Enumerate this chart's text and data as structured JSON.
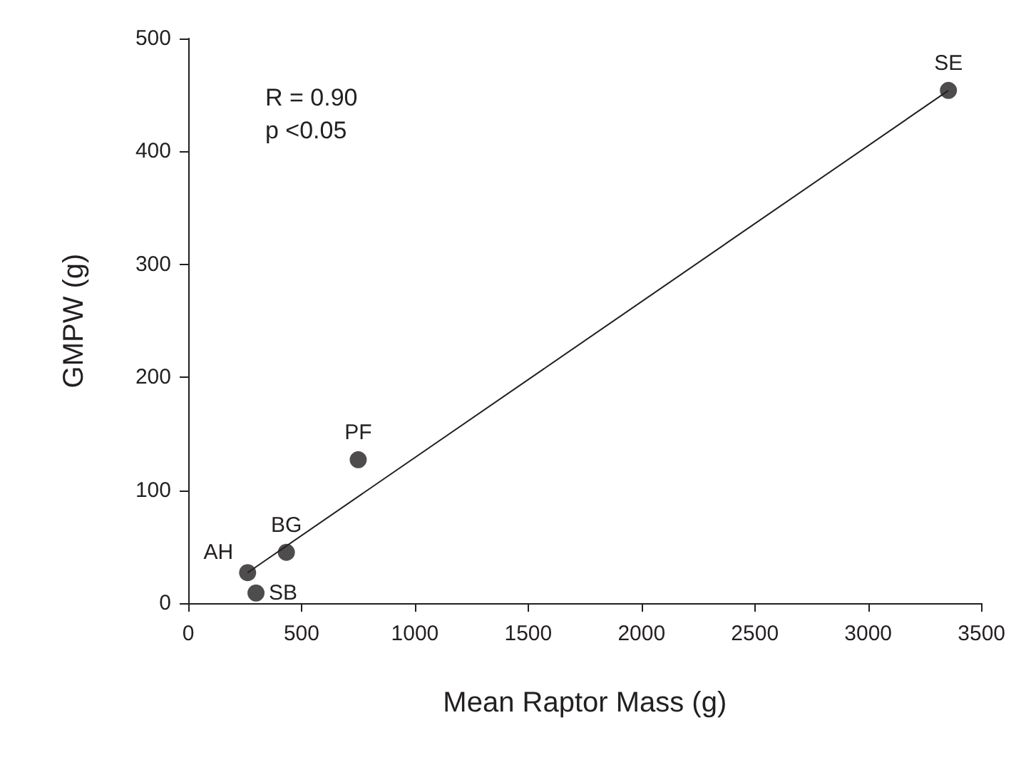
{
  "chart_data": {
    "type": "scatter",
    "xlabel": "Mean Raptor Mass (g)",
    "ylabel": "GMPW (g)",
    "x": [
      262,
      299,
      433,
      750,
      3354
    ],
    "values": [
      27,
      9,
      45,
      127,
      454
    ],
    "color": "#231f20",
    "marker": "circle",
    "series": [
      {
        "type": "line",
        "x": [
          262,
          3354
        ],
        "values": [
          27,
          454
        ],
        "color": "#231f20",
        "line_style": "solid",
        "marker": "none"
      }
    ],
    "xlim": [
      0,
      3500
    ],
    "xticks": [
      0,
      500,
      1000,
      1500,
      2000,
      2500,
      3000,
      3500
    ],
    "ylim": [
      0,
      500
    ],
    "yticks": [
      0,
      100,
      200,
      300,
      400,
      500
    ],
    "grid": false,
    "annotations": [
      "R = 0.90",
      "p <0.05",
      {
        "text": "AH",
        "x": 262,
        "y": 27
      },
      {
        "text": "SB",
        "x": 299,
        "y": 9
      },
      {
        "text": "BG",
        "x": 433,
        "y": 45
      },
      {
        "text": "PF",
        "x": 750,
        "y": 127
      },
      {
        "text": "SE",
        "x": 3354,
        "y": 454
      }
    ]
  }
}
